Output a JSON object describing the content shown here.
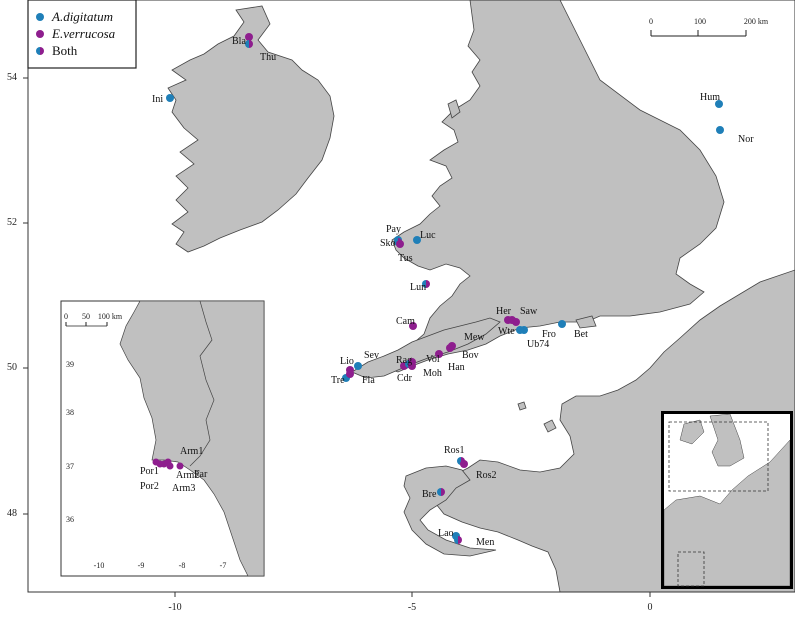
{
  "colors": {
    "adigitatum": "#1f7fb8",
    "everrucosa": "#8e1e8e",
    "land": "#c0c0c0",
    "coast": "#444444"
  },
  "legend": [
    {
      "key": "adigitatum",
      "label": "A.digitatum"
    },
    {
      "key": "everrucosa",
      "label": "E.verrucosa"
    },
    {
      "key": "both",
      "label": "Both"
    }
  ],
  "scalebar": {
    "ticks": [
      "0",
      "100",
      "200 km"
    ]
  },
  "axes": {
    "x_ticks": [
      "-10",
      "-5",
      "0"
    ],
    "y_ticks": [
      "54",
      "52",
      "50",
      "48"
    ]
  },
  "inset": {
    "scalebar_ticks": [
      "0",
      "50",
      "100 km"
    ],
    "x_ticks": [
      "-10",
      "-9",
      "-8",
      "-7"
    ],
    "y_ticks": [
      "39",
      "38",
      "37",
      "36"
    ],
    "sites": [
      {
        "name": "Arm1",
        "type": "everrucosa"
      },
      {
        "name": "Por1",
        "type": "everrucosa"
      },
      {
        "name": "Arm2",
        "type": "everrucosa"
      },
      {
        "name": "Far",
        "type": "everrucosa"
      },
      {
        "name": "Por2",
        "type": "everrucosa"
      },
      {
        "name": "Arm3",
        "type": "everrucosa"
      }
    ]
  },
  "sites": [
    {
      "name": "Bla",
      "type": "everrucosa"
    },
    {
      "name": "Thu",
      "type": "both"
    },
    {
      "name": "Ini",
      "type": "adigitatum"
    },
    {
      "name": "Hum",
      "type": "adigitatum"
    },
    {
      "name": "Nor",
      "type": "adigitatum"
    },
    {
      "name": "Pay",
      "type": "adigitatum"
    },
    {
      "name": "Luc",
      "type": "adigitatum"
    },
    {
      "name": "Sko",
      "type": "both"
    },
    {
      "name": "Tus",
      "type": "everrucosa"
    },
    {
      "name": "Lun",
      "type": "both"
    },
    {
      "name": "Cam",
      "type": "everrucosa"
    },
    {
      "name": "Her",
      "type": "everrucosa"
    },
    {
      "name": "Saw",
      "type": "everrucosa"
    },
    {
      "name": "Wte",
      "type": "everrucosa"
    },
    {
      "name": "Fro",
      "type": "adigitatum"
    },
    {
      "name": "Ub74",
      "type": "adigitatum"
    },
    {
      "name": "Bet",
      "type": "adigitatum"
    },
    {
      "name": "Mew",
      "type": "everrucosa"
    },
    {
      "name": "Bov",
      "type": "everrucosa"
    },
    {
      "name": "Han",
      "type": "everrucosa"
    },
    {
      "name": "Vol",
      "type": "everrucosa"
    },
    {
      "name": "Rag",
      "type": "everrucosa"
    },
    {
      "name": "Cdr",
      "type": "both"
    },
    {
      "name": "Moh",
      "type": "everrucosa"
    },
    {
      "name": "Lio",
      "type": "everrucosa"
    },
    {
      "name": "Sev",
      "type": "adigitatum"
    },
    {
      "name": "Tre",
      "type": "adigitatum"
    },
    {
      "name": "Fla",
      "type": "everrucosa"
    },
    {
      "name": "Ros1",
      "type": "both"
    },
    {
      "name": "Ros2",
      "type": "everrucosa"
    },
    {
      "name": "Bre",
      "type": "both"
    },
    {
      "name": "Lao",
      "type": "adigitatum"
    },
    {
      "name": "Men",
      "type": "both"
    }
  ]
}
